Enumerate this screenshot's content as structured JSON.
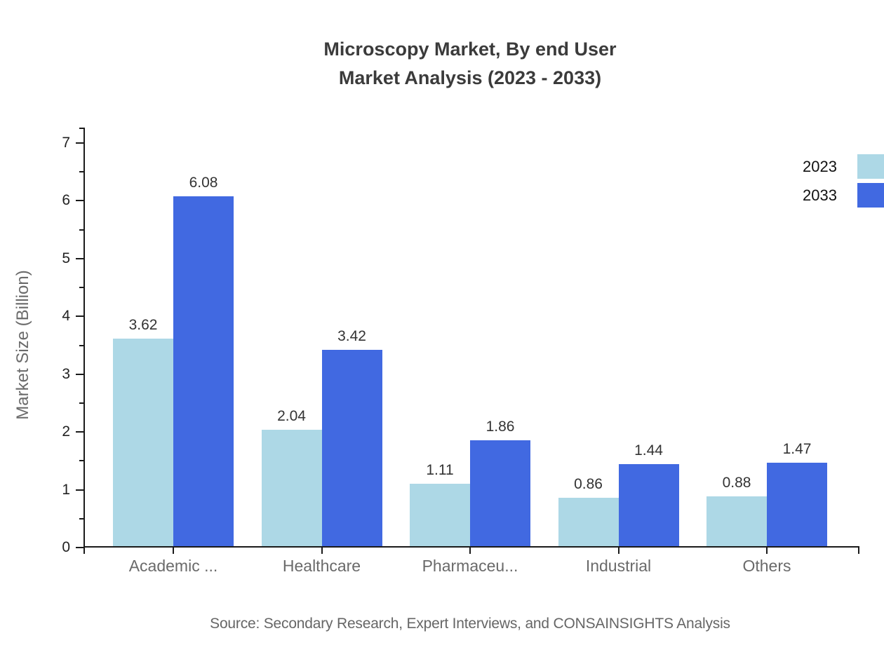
{
  "title": {
    "line1": "Microscopy Market, By end User",
    "line2": "Market Analysis (2023 - 2033)"
  },
  "source_note": "Source: Secondary Research, Expert Interviews, and CONSAINSIGHTS Analysis",
  "chart_data": {
    "type": "bar",
    "title": "Microscopy Market, By end User Market Analysis (2023 - 2033)",
    "categories": [
      "Academic ...",
      "Healthcare",
      "Pharmaceu...",
      "Industrial",
      "Others"
    ],
    "series": [
      {
        "name": "2023",
        "color": "#ADD8E6",
        "values": [
          3.62,
          2.04,
          1.11,
          0.86,
          0.88
        ]
      },
      {
        "name": "2033",
        "color": "#4169E1",
        "values": [
          6.08,
          3.42,
          1.86,
          1.44,
          1.47
        ]
      }
    ],
    "xlabel": "",
    "ylabel": "Market Size (Billion)",
    "ylim": [
      0,
      7
    ],
    "yticks": [
      0,
      1,
      2,
      3,
      4,
      5,
      6,
      7
    ],
    "minor_tick_step": 0.5,
    "grid": false,
    "legend_position": "upper-right",
    "value_labels": true
  },
  "colors": {
    "axis": "#1a1a1a",
    "title_text": "#3b3b3b",
    "tick_label_text": "#222222",
    "value_label_text": "#333333",
    "category_label_text": "#6a6a6a",
    "muted_text": "#666666"
  }
}
